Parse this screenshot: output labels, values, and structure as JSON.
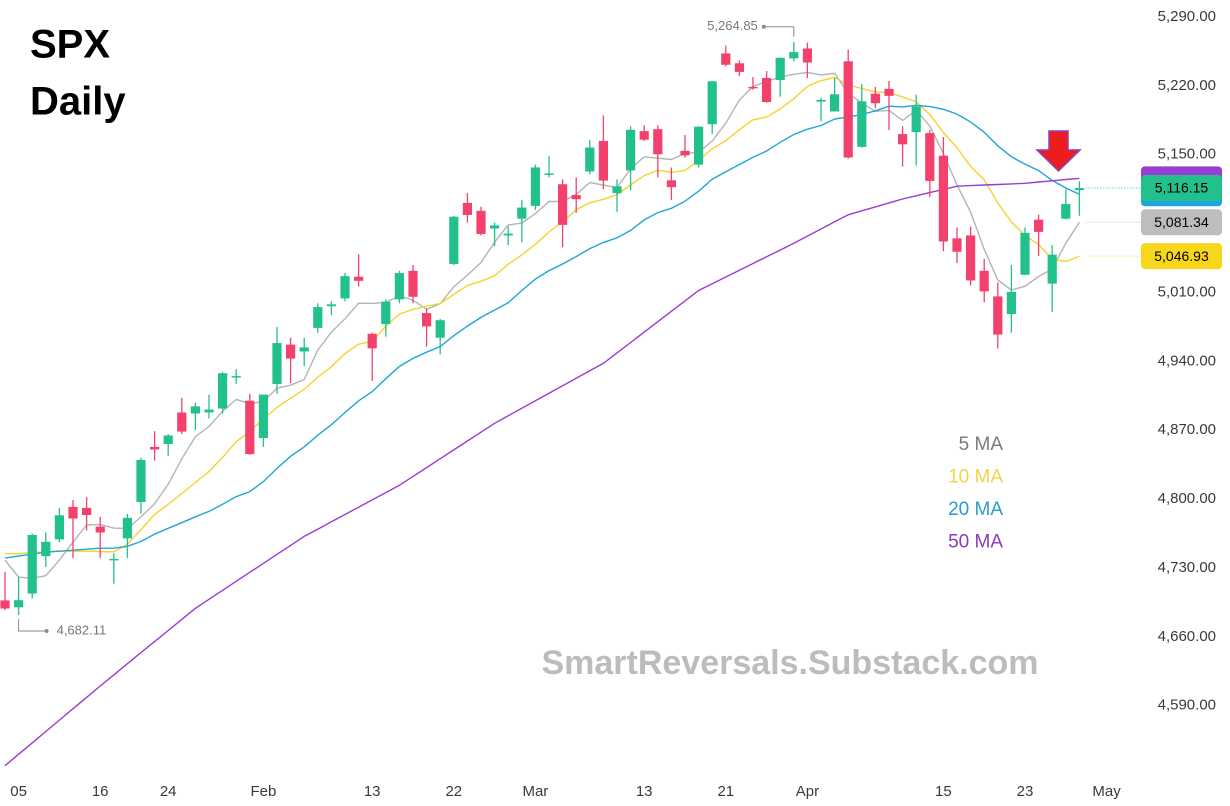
{
  "chart_data": {
    "type": "candlestick",
    "title": "SPX",
    "subtitle": "Daily",
    "watermark": "SmartReversals.Substack.com",
    "categories": [
      null,
      "05",
      null,
      null,
      null,
      null,
      null,
      "16",
      null,
      null,
      null,
      null,
      "24",
      null,
      null,
      null,
      null,
      null,
      null,
      "Feb",
      null,
      null,
      null,
      null,
      null,
      null,
      null,
      "13",
      null,
      null,
      null,
      null,
      null,
      "22",
      null,
      null,
      null,
      null,
      null,
      "Mar",
      null,
      null,
      null,
      null,
      null,
      null,
      null,
      "13",
      null,
      null,
      null,
      null,
      null,
      "21",
      null,
      null,
      null,
      null,
      null,
      "Apr",
      null,
      null,
      null,
      null,
      null,
      null,
      null,
      null,
      null,
      "15",
      null,
      null,
      null,
      null,
      null,
      "23",
      null,
      null,
      null,
      null,
      null,
      "May"
    ],
    "open": [
      4697,
      4690,
      4704,
      4742,
      4759,
      4792,
      4791,
      4772,
      4739,
      4760,
      4797,
      4853,
      4856,
      4888,
      4887,
      4888,
      4892,
      4925,
      4900,
      4862,
      4917,
      4957,
      4950,
      4974,
      4996,
      5004,
      5026,
      4968,
      4978,
      5003,
      5032,
      4989,
      4964,
      5039,
      5101,
      5093,
      5075,
      5068,
      5085,
      5098,
      5131,
      5120,
      5109,
      5133,
      5164,
      5111,
      5134,
      5174,
      5176,
      5124,
      5154,
      5140,
      5181,
      5253,
      5243,
      5219,
      5228,
      5226,
      5248,
      5258,
      5204,
      5194,
      5245,
      5158,
      5212,
      5217,
      5171,
      5173,
      5172,
      5149,
      5065,
      5068,
      5032,
      5006,
      4988,
      5028,
      5084,
      5019,
      5085,
      5114,
      null,
      null
    ],
    "high": [
      4726,
      4721,
      4765,
      4766,
      4791,
      4799,
      4802,
      4782,
      4745,
      4785,
      4842,
      4869,
      4866,
      4903,
      4898,
      4906,
      4929,
      4932,
      4907,
      4906,
      4975,
      4964,
      4964,
      4999,
      5001,
      5030,
      5049,
      4969,
      5003,
      5032,
      5038,
      4994,
      4983,
      5088,
      5111,
      5097,
      5081,
      5077,
      5104,
      5140,
      5149,
      5125,
      5127,
      5165,
      5190,
      5125,
      5179,
      5180,
      5180,
      5137,
      5170,
      5179,
      5225,
      5261,
      5246,
      5229,
      5235,
      5249,
      5264.85,
      5264,
      5208,
      5228,
      5257,
      5222,
      5219,
      5225,
      5179,
      5211,
      5175,
      5168,
      5076,
      5077,
      5044,
      5020,
      5038,
      5076,
      5089,
      5058,
      5115,
      5123,
      null,
      null
    ],
    "low": [
      4687,
      4682.11,
      4699,
      4731,
      4756,
      4740,
      4768,
      4740,
      4714,
      4740,
      4785,
      4839,
      4844,
      4866,
      4870,
      4882,
      4887,
      4917,
      4845,
      4853,
      4907,
      4918,
      4935,
      4969,
      4987,
      5001,
      5016,
      4920,
      4965,
      4999,
      4999,
      4955,
      4947,
      5038,
      5081,
      5068,
      5057,
      5058,
      5061,
      5094,
      5127,
      5056,
      5091,
      5130,
      5115,
      5092,
      5114,
      5164,
      5127,
      5104,
      5147,
      5137,
      5171,
      5240,
      5230,
      5216,
      5203,
      5209,
      5245,
      5228,
      5184,
      5194,
      5146,
      5157,
      5197,
      5175,
      5138,
      5139,
      5107,
      5052,
      5040,
      5017,
      5000,
      4953,
      4969,
      5028,
      5047,
      4990,
      5084,
      5088,
      null,
      null
    ],
    "close": [
      4688.7,
      4697.2,
      4763.5,
      4756.5,
      4783.5,
      4780.2,
      4783.8,
      4766.0,
      4739.2,
      4780.9,
      4839.8,
      4850.4,
      4864.6,
      4868.6,
      4894.2,
      4891.0,
      4927.9,
      4925.0,
      4845.7,
      4906.2,
      4958.6,
      4942.8,
      4954.2,
      4995.1,
      4997.9,
      5026.6,
      5021.8,
      4953.2,
      5000.6,
      5029.7,
      5005.6,
      4975.5,
      4981.8,
      5087.0,
      5088.8,
      5069.5,
      5078.2,
      5069.8,
      5096.3,
      5137.1,
      5131.0,
      5078.7,
      5104.8,
      5157.4,
      5123.7,
      5117.9,
      5175.3,
      5165.3,
      5150.5,
      5117.1,
      5149.4,
      5178.5,
      5224.6,
      5241.5,
      5234.2,
      5218.2,
      5203.6,
      5248.5,
      5254.35,
      5243.8,
      5205.8,
      5211.5,
      5147.2,
      5204.3,
      5202.4,
      5209.9,
      5160.6,
      5199.1,
      5123.4,
      5061.8,
      5051.4,
      5022.2,
      5011.1,
      4967.2,
      5010.6,
      5070.6,
      5071.6,
      5048.4,
      5100.0,
      5116.15,
      null,
      null
    ],
    "up_color": "#22c08c",
    "down_color": "#f2416c",
    "series": [
      {
        "name": "5 MA",
        "color": "#b4b4b4",
        "text_color": "#7b7b7b",
        "values": [
          4737.9,
          4720.7,
          4719.4,
          4722.1,
          4737.9,
          4756.2,
          4773.5,
          4774.0,
          4770.5,
          4770.0,
          4781.9,
          4795.3,
          4815.0,
          4840.9,
          4863.5,
          4873.8,
          4889.3,
          4901.3,
          4896.8,
          4899.2,
          4912.7,
          4915.7,
          4921.5,
          4951.4,
          4969.7,
          4983.3,
          4999.1,
          4998.9,
          5000.0,
          5006.4,
          5002.2,
          4992.9,
          4998.6,
          5015.9,
          5027.7,
          5040.5,
          5061.1,
          5078.7,
          5080.5,
          5090.2,
          5102.5,
          5102.6,
          5109.6,
          5121.8,
          5119.1,
          5116.5,
          5135.8,
          5147.9,
          5146.5,
          5145.2,
          5151.5,
          5152.2,
          5164.0,
          5182.2,
          5205.6,
          5219.4,
          5224.4,
          5229.2,
          5231.8,
          5233.7,
          5231.2,
          5232.8,
          5212.5,
          5202.5,
          5194.2,
          5195.1,
          5184.9,
          5195.3,
          5179.1,
          5151.0,
          5119.3,
          5091.6,
          5054.0,
          5022.7,
          5012.5,
          5016.3,
          5026.2,
          5033.7,
          5060.2,
          5081.34,
          null,
          null
        ]
      },
      {
        "name": "10 MA",
        "color": "#f5d32e",
        "text_color": "#f3d34a",
        "values": [
          4744.6,
          4744.4,
          4746.1,
          4746.3,
          4747.2,
          4747.0,
          4747.1,
          4746.7,
          4746.3,
          4754.0,
          4769.1,
          4784.4,
          4794.5,
          4805.7,
          4816.8,
          4827.9,
          4842.3,
          4858.2,
          4868.8,
          4881.3,
          4893.2,
          4902.5,
          4911.4,
          4924.1,
          4934.4,
          4948.0,
          4957.4,
          4960.2,
          4975.7,
          4988.1,
          4992.8,
          4996.0,
          4998.8,
          5008.0,
          5017.1,
          5021.4,
          5027.0,
          5038.7,
          5048.2,
          5059.0,
          5071.5,
          5081.8,
          5094.1,
          5101.2,
          5104.7,
          5109.5,
          5119.2,
          5128.8,
          5134.2,
          5132.2,
          5134.0,
          5144.0,
          5156.0,
          5164.4,
          5175.4,
          5185.5,
          5188.3,
          5196.6,
          5207.0,
          5219.7,
          5225.3,
          5228.6,
          5220.9,
          5217.2,
          5214.0,
          5213.1,
          5208.8,
          5203.9,
          5190.8,
          5172.6,
          5157.2,
          5138.2,
          5124.6,
          5100.9,
          5081.7,
          5067.8,
          5058.9,
          5043.8,
          5041.5,
          5046.93,
          null,
          null
        ]
      },
      {
        "name": "20 MA",
        "color": "#1ea6d8",
        "text_color": "#2a9bcc",
        "values": [
          4740,
          4742,
          4744,
          4746,
          4747,
          4748,
          4749,
          4750,
          4750,
          4752,
          4756.9,
          4764.4,
          4770.3,
          4776.0,
          4782.0,
          4787.5,
          4794.7,
          4802.5,
          4807.6,
          4817.7,
          4831.2,
          4843.5,
          4853.0,
          4864.9,
          4875.6,
          4888.0,
          4899.9,
          4909.2,
          4922.3,
          4934.7,
          4943.0,
          4949.3,
          4955.1,
          4966.1,
          4975.8,
          4984.7,
          4992.2,
          4999.5,
          5012.0,
          5023.6,
          5032.2,
          5038.9,
          5046.5,
          5054.6,
          5060.9,
          5065.5,
          5073.1,
          5083.8,
          5091.2,
          5095.6,
          5102.8,
          5112.9,
          5125.1,
          5132.8,
          5140.1,
          5147.5,
          5153.8,
          5162.7,
          5170.6,
          5176.0,
          5179.7,
          5186.3,
          5188.5,
          5190.8,
          5194.7,
          5199.3,
          5198.6,
          5200.3,
          5198.9,
          5196.2,
          5191.3,
          5183.4,
          5172.8,
          5159.1,
          5147.9,
          5140.5,
          5133.9,
          5123.9,
          5116.2,
          5109.8,
          null,
          null
        ]
      },
      {
        "name": "50 MA",
        "color": "#9a3dd2",
        "text_color": "#8a3cbb",
        "values": [
          4529,
          4540.6,
          4552.1,
          4563.7,
          4575.3,
          4586.9,
          4598.4,
          4610,
          4621.3,
          4632.6,
          4643.9,
          4655.1,
          4666.4,
          4677.7,
          4689,
          4698.1,
          4707.3,
          4716.4,
          4725.5,
          4734.6,
          4743.8,
          4752.9,
          4762,
          4769.4,
          4776.9,
          4784.3,
          4791.7,
          4799.1,
          4806.6,
          4814,
          4823,
          4832,
          4841,
          4850,
          4859,
          4868,
          4877,
          4884.6,
          4892.3,
          4899.9,
          4907.5,
          4915.1,
          4922.8,
          4930.4,
          4938,
          4948.6,
          4959.1,
          4969.7,
          4980.3,
          4990.9,
          5001.4,
          5012,
          5018.9,
          5025.7,
          5032.6,
          5039.4,
          5046.3,
          5053.1,
          5060,
          5067.3,
          5074.5,
          5081.8,
          5089,
          5093,
          5097,
          5101,
          5105,
          5108.3,
          5111.5,
          5114.8,
          5118,
          5118.6,
          5119.2,
          5119.8,
          5120.4,
          5121,
          5122.3,
          5123.5,
          5124.8,
          5126,
          null,
          null
        ]
      }
    ],
    "ylim": [
      4519.5,
      5307.3
    ],
    "yticks": [
      {
        "value": 4590,
        "label": "4,590.00"
      },
      {
        "value": 4660,
        "label": "4,660.00"
      },
      {
        "value": 4730,
        "label": "4,730.00"
      },
      {
        "value": 4800,
        "label": "4,800.00"
      },
      {
        "value": 4870,
        "label": "4,870.00"
      },
      {
        "value": 4940,
        "label": "4,940.00"
      },
      {
        "value": 5010,
        "label": "5,010.00"
      },
      {
        "value": 5150,
        "label": "5,150.00"
      },
      {
        "value": 5220,
        "label": "5,220.00"
      },
      {
        "value": 5290,
        "label": "5,290.00"
      }
    ],
    "price_labels": [
      {
        "value": 5116.15,
        "label": "5,116.15",
        "color": "#22c08c"
      },
      {
        "value": 5081.34,
        "label": "5,081.34",
        "color": "#bdbdbd"
      },
      {
        "value": 5046.93,
        "label": "5,046.93",
        "color": "#f8d61c"
      }
    ],
    "annotations": [
      {
        "value": 5264.85,
        "label": "5,264.85",
        "kind": "high"
      },
      {
        "value": 4682.11,
        "label": "4,682.11",
        "kind": "low"
      }
    ]
  }
}
